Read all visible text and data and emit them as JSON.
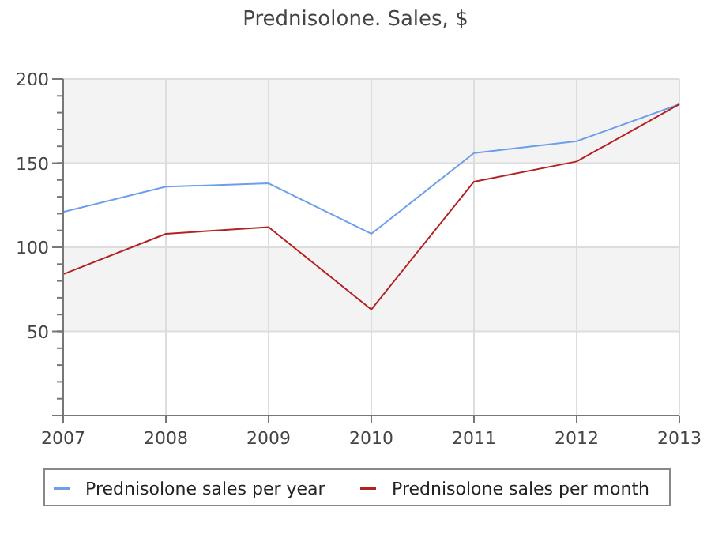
{
  "chart_data": {
    "type": "line",
    "title": "Prednisolone. Sales, $",
    "x": [
      2007,
      2008,
      2009,
      2010,
      2011,
      2012,
      2013
    ],
    "series": [
      {
        "name": "Prednisolone sales per year",
        "color": "#6d9eeb",
        "values": [
          121,
          136,
          138,
          108,
          156,
          163,
          185
        ]
      },
      {
        "name": "Prednisolone sales per month",
        "color": "#b22222",
        "values": [
          84,
          108,
          112,
          63,
          139,
          151,
          185
        ]
      }
    ],
    "xlim": [
      2007,
      2013
    ],
    "xticks": [
      2007,
      2008,
      2009,
      2010,
      2011,
      2012,
      2013
    ],
    "ylim": [
      0,
      200
    ],
    "yticks": [
      {
        "value": 0,
        "label": null
      },
      50,
      100,
      150,
      200
    ],
    "grid": true,
    "legend": "bottom",
    "line_style": "solid",
    "marker": "none"
  }
}
